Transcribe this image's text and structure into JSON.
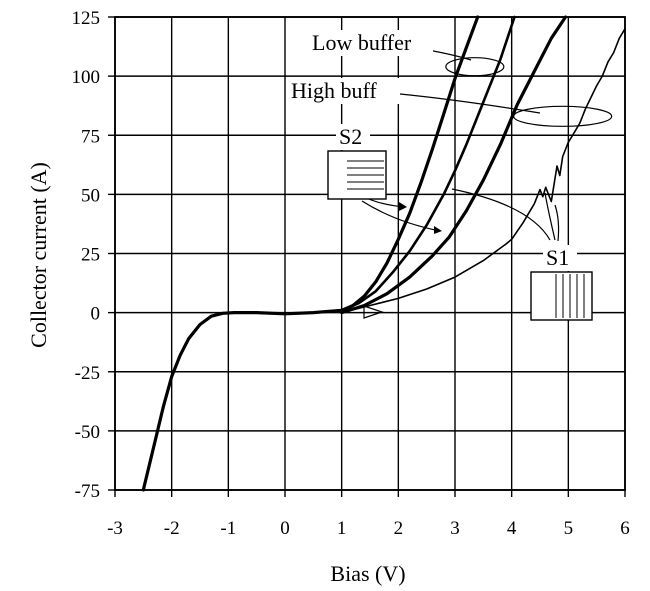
{
  "chart_data": {
    "type": "line",
    "xlabel": "Bias (V)",
    "ylabel": "Collector current (A)",
    "xlim": [
      -3,
      6
    ],
    "ylim": [
      -75,
      125
    ],
    "xticks": [
      "-3",
      "-2",
      "-1",
      "0",
      "1",
      "2",
      "3",
      "4",
      "5",
      "6"
    ],
    "yticks": [
      "125",
      "100",
      "75",
      "50",
      "25",
      "0",
      "-25",
      "-50",
      "-75"
    ],
    "grid": true,
    "annotations": [
      "Low buffer",
      "High buff",
      "S2",
      "S1"
    ],
    "series": [
      {
        "x": [
          -2.5,
          -2.3,
          -2.15,
          -2.0,
          -1.85,
          -1.7,
          -1.5,
          -1.3,
          -1.1,
          -0.9,
          -0.5,
          0.0,
          0.5,
          1.0,
          1.2,
          1.4,
          1.6,
          1.8,
          2.0,
          2.2,
          2.4,
          2.6,
          2.8,
          3.0,
          3.2,
          3.4
        ],
        "y": [
          -75,
          -55,
          -40,
          -27,
          -18,
          -11,
          -5,
          -1.5,
          -0.3,
          0,
          0,
          -0.5,
          0,
          1,
          3,
          7,
          13,
          21,
          31,
          42,
          55,
          69,
          84,
          99,
          112,
          125
        ]
      },
      {
        "x": [
          1.0,
          1.3,
          1.6,
          1.9,
          2.2,
          2.5,
          2.8,
          3.0,
          3.2,
          3.5,
          3.8,
          4.05
        ],
        "y": [
          1,
          4,
          9,
          17,
          26,
          37,
          50,
          60,
          71,
          89,
          107,
          125
        ]
      },
      {
        "x": [
          1.0,
          1.4,
          1.8,
          2.2,
          2.6,
          2.9,
          3.2,
          3.5,
          3.8,
          4.1,
          4.4,
          4.7,
          4.95
        ],
        "y": [
          0,
          3,
          8,
          15,
          24,
          32,
          43,
          56,
          71,
          88,
          102,
          116,
          125
        ]
      },
      {
        "x": [
          1.0,
          1.5,
          2.0,
          2.5,
          3.0,
          3.5,
          3.9,
          4.0,
          4.2,
          4.4,
          4.5,
          4.55,
          4.6,
          4.7,
          4.8,
          4.85,
          4.9,
          5.0,
          5.1,
          5.2,
          5.3,
          5.4,
          5.5,
          5.6,
          5.7,
          5.8,
          5.9,
          6.0
        ],
        "y": [
          0,
          3,
          6,
          10,
          15,
          22,
          29,
          31,
          38,
          46,
          52,
          49,
          53,
          47,
          62,
          58,
          66,
          72,
          76,
          80,
          86,
          91,
          96,
          100,
          106,
          110,
          116,
          120
        ]
      }
    ]
  }
}
